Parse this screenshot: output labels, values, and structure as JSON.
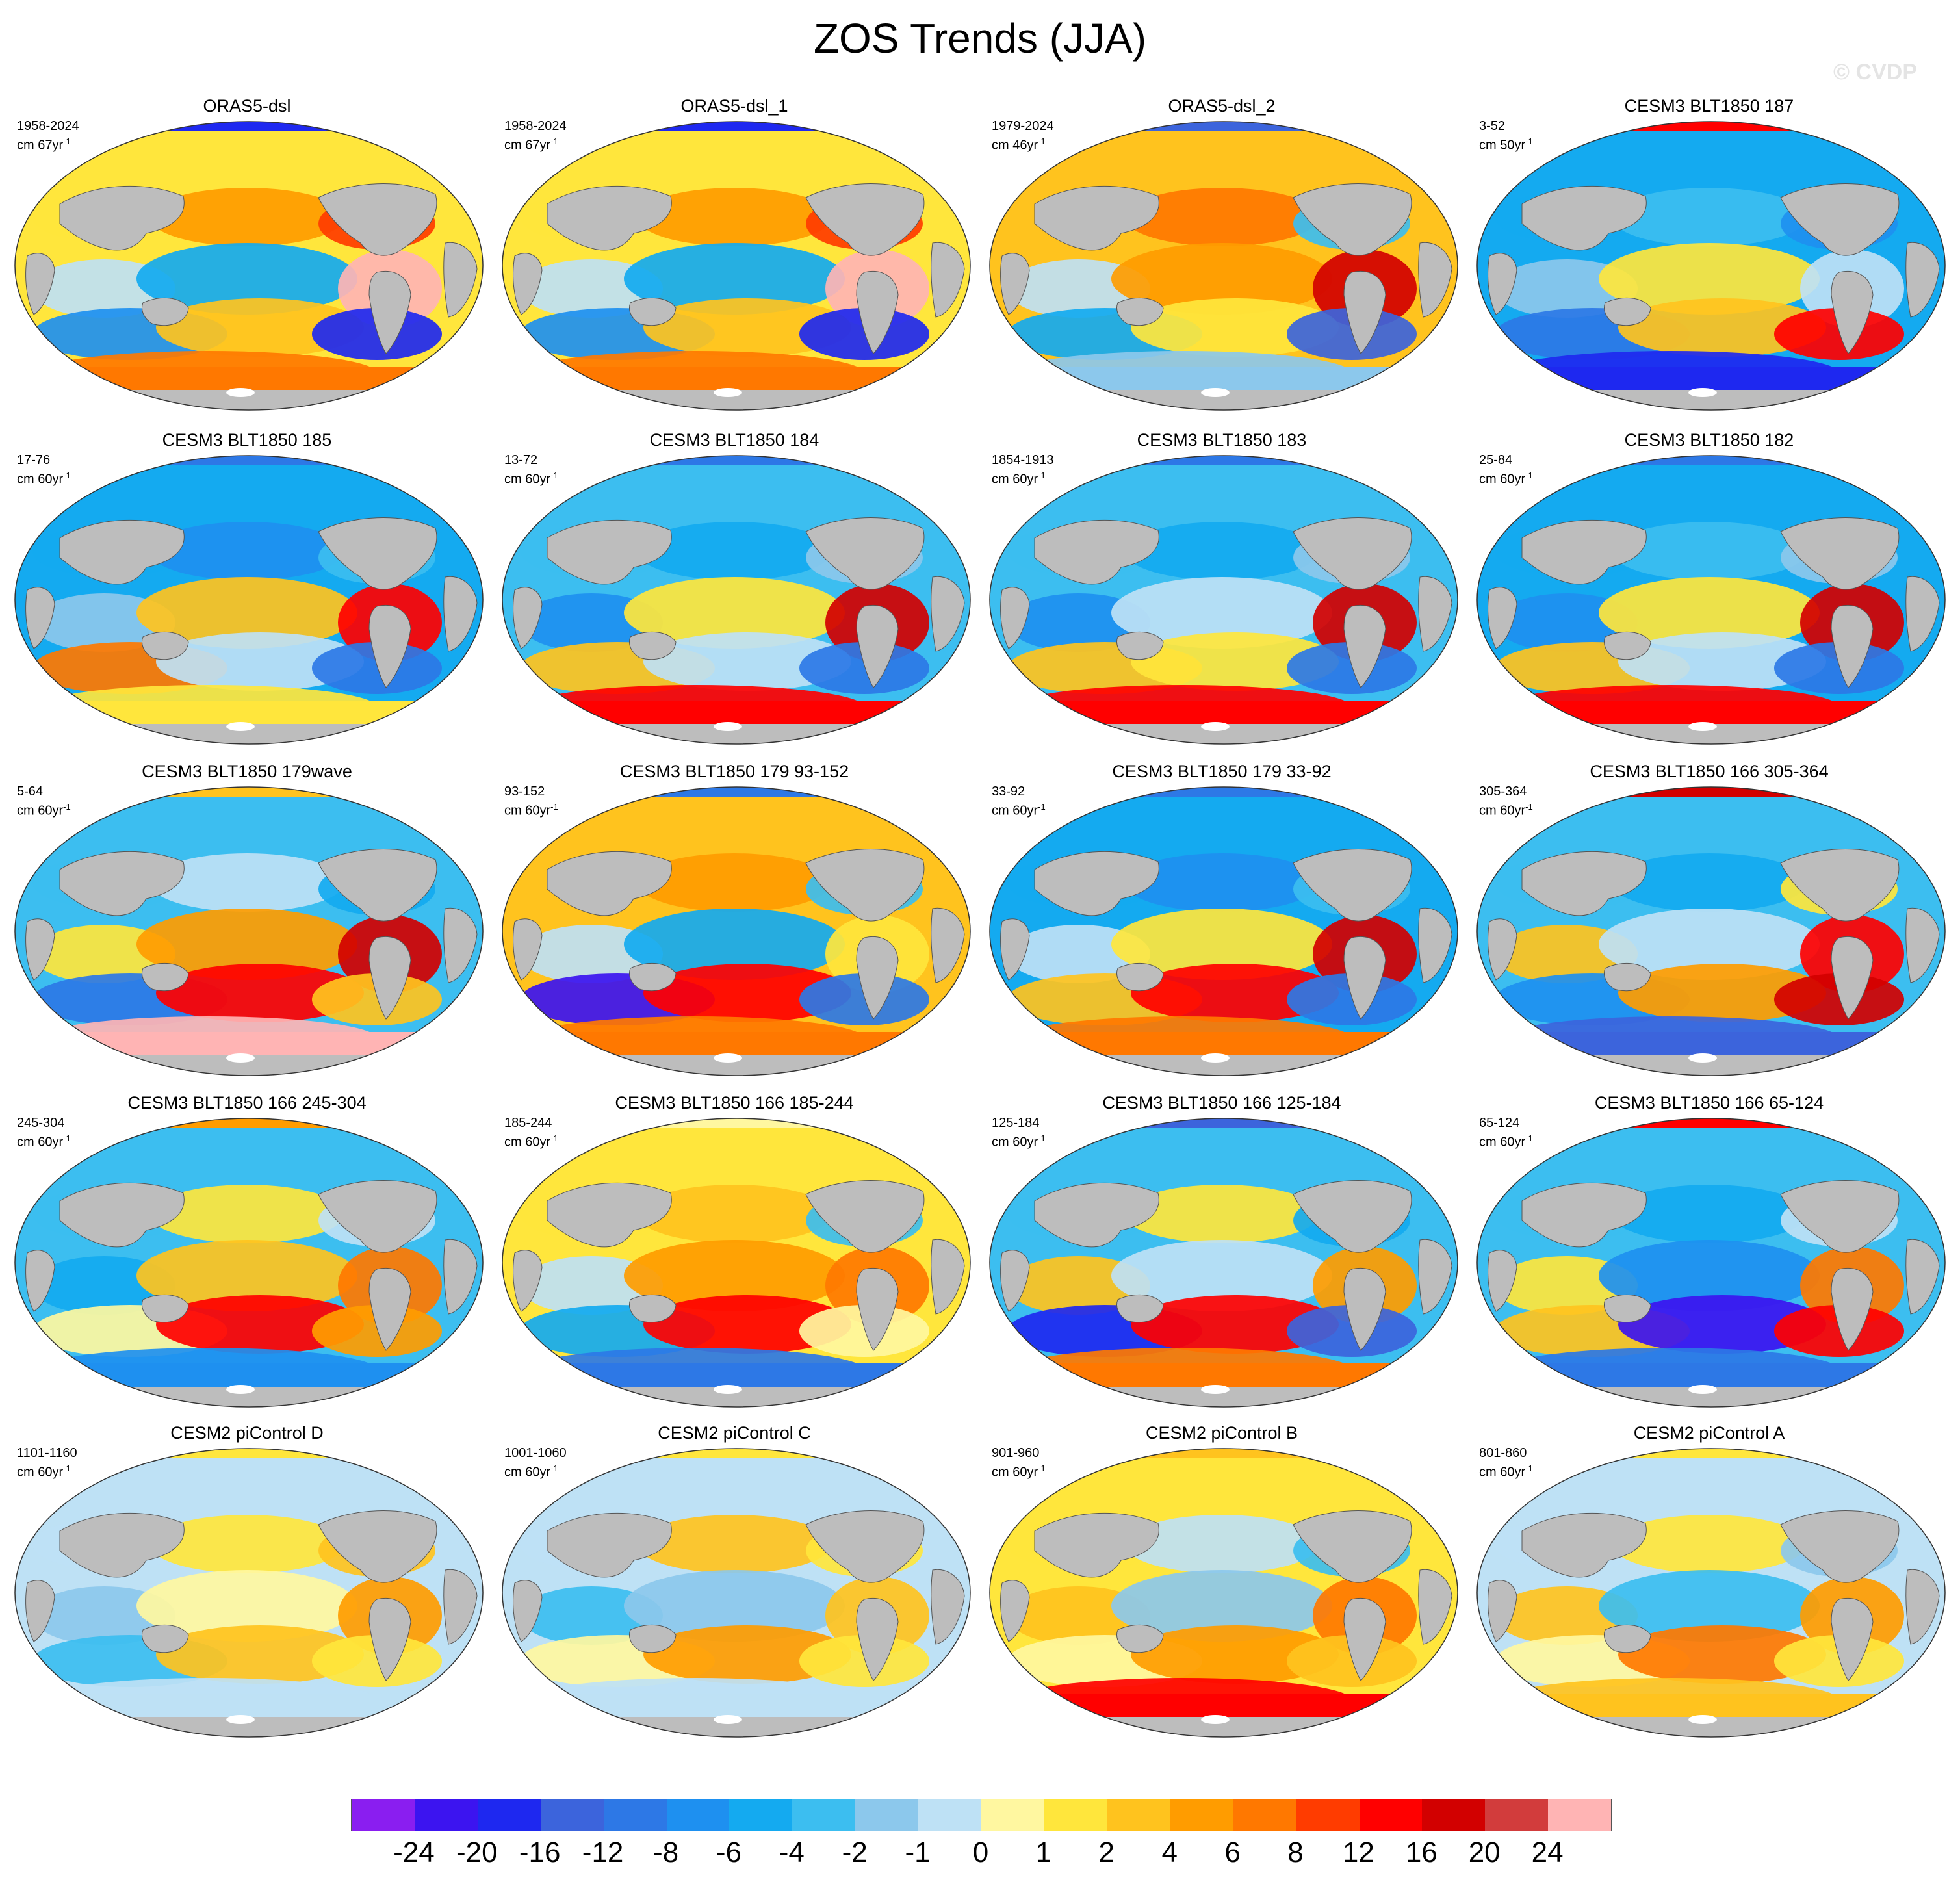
{
  "title": "ZOS Trends (JJA)",
  "watermark": "© CVDP",
  "colorbar": {
    "colors": [
      "#8a1ef0",
      "#3c14f0",
      "#1e28f0",
      "#3c64dc",
      "#2d78e6",
      "#1e90f0",
      "#14aaf0",
      "#3cbef0",
      "#8cc8ec",
      "#bee1f5",
      "#fff7a0",
      "#ffe63c",
      "#ffc31e",
      "#ff9c00",
      "#ff7800",
      "#ff3c00",
      "#ff0000",
      "#d20000",
      "#d23c3c",
      "#ffb4b4"
    ],
    "labels": [
      "-24",
      "-20",
      "-16",
      "-12",
      "-8",
      "-6",
      "-4",
      "-2",
      "-1",
      "0",
      "1",
      "2",
      "4",
      "6",
      "8",
      "12",
      "16",
      "20",
      "24"
    ]
  },
  "panels": [
    {
      "title": "ORAS5-dsl",
      "period": "1958-2024",
      "units": "cm 67yr",
      "unit_sup": "-1",
      "scheme": [
        11,
        13,
        15,
        9,
        6,
        19,
        5,
        12,
        2,
        14
      ]
    },
    {
      "title": "ORAS5-dsl_1",
      "period": "1958-2024",
      "units": "cm 67yr",
      "unit_sup": "-1",
      "scheme": [
        11,
        13,
        15,
        9,
        6,
        19,
        5,
        12,
        2,
        14
      ]
    },
    {
      "title": "ORAS5-dsl_2",
      "period": "1979-2024",
      "units": "cm 46yr",
      "unit_sup": "-1",
      "scheme": [
        12,
        14,
        7,
        9,
        13,
        17,
        6,
        11,
        3,
        8
      ]
    },
    {
      "title": "CESM3 BLT1850 187",
      "period": "3-52",
      "units": "cm 50yr",
      "unit_sup": "-1",
      "scheme": [
        6,
        7,
        5,
        8,
        11,
        9,
        4,
        12,
        16,
        2
      ]
    },
    {
      "title": "CESM3 BLT1850 185",
      "period": "17-76",
      "units": "cm 60yr",
      "unit_sup": "-1",
      "scheme": [
        6,
        5,
        7,
        8,
        12,
        16,
        14,
        9,
        4,
        11
      ]
    },
    {
      "title": "CESM3 BLT1850 184",
      "period": "13-72",
      "units": "cm 60yr",
      "unit_sup": "-1",
      "scheme": [
        7,
        6,
        8,
        5,
        11,
        17,
        12,
        9,
        4,
        16
      ]
    },
    {
      "title": "CESM3 BLT1850 183",
      "period": "1854-1913",
      "units": "cm 60yr",
      "unit_sup": "-1",
      "scheme": [
        7,
        6,
        8,
        5,
        9,
        17,
        12,
        11,
        4,
        16
      ]
    },
    {
      "title": "CESM3 BLT1850 182",
      "period": "25-84",
      "units": "cm 60yr",
      "unit_sup": "-1",
      "scheme": [
        6,
        7,
        8,
        5,
        11,
        17,
        12,
        9,
        4,
        16
      ]
    },
    {
      "title": "CESM3 BLT1850 179wave",
      "period": "5-64",
      "units": "cm 60yr",
      "unit_sup": "-1",
      "scheme": [
        7,
        9,
        6,
        11,
        13,
        17,
        4,
        16,
        12,
        19
      ]
    },
    {
      "title": "CESM3 BLT1850 179 93-152",
      "period": "93-152",
      "units": "cm 60yr",
      "unit_sup": "-1",
      "scheme": [
        12,
        13,
        7,
        9,
        6,
        11,
        1,
        16,
        4,
        14
      ]
    },
    {
      "title": "CESM3 BLT1850 179 33-92",
      "period": "33-92",
      "units": "cm 60yr",
      "unit_sup": "-1",
      "scheme": [
        6,
        5,
        7,
        9,
        11,
        17,
        12,
        16,
        4,
        14
      ]
    },
    {
      "title": "CESM3 BLT1850 166 305-364",
      "period": "305-364",
      "units": "cm 60yr",
      "unit_sup": "-1",
      "scheme": [
        7,
        6,
        11,
        12,
        9,
        16,
        5,
        13,
        17,
        3
      ]
    },
    {
      "title": "CESM3 BLT1850 166 245-304",
      "period": "245-304",
      "units": "cm 60yr",
      "unit_sup": "-1",
      "scheme": [
        7,
        11,
        9,
        6,
        12,
        14,
        10,
        16,
        13,
        5
      ]
    },
    {
      "title": "CESM3 BLT1850 166 185-244",
      "period": "185-244",
      "units": "cm 60yr",
      "unit_sup": "-1",
      "scheme": [
        11,
        12,
        7,
        9,
        13,
        14,
        6,
        16,
        10,
        4
      ]
    },
    {
      "title": "CESM3 BLT1850 166 125-184",
      "period": "125-184",
      "units": "cm 60yr",
      "unit_sup": "-1",
      "scheme": [
        7,
        11,
        6,
        12,
        9,
        13,
        2,
        16,
        3,
        14
      ]
    },
    {
      "title": "CESM3 BLT1850 166 65-124",
      "period": "65-124",
      "units": "cm 60yr",
      "unit_sup": "-1",
      "scheme": [
        7,
        6,
        9,
        11,
        5,
        14,
        12,
        1,
        16,
        4
      ]
    },
    {
      "title": "CESM2 piControl D",
      "period": "1101-1160",
      "units": "cm 60yr",
      "unit_sup": "-1",
      "scheme": [
        9,
        11,
        12,
        8,
        10,
        13,
        7,
        12,
        11,
        9
      ]
    },
    {
      "title": "CESM2 piControl C",
      "period": "1001-1060",
      "units": "cm 60yr",
      "unit_sup": "-1",
      "scheme": [
        9,
        12,
        11,
        7,
        8,
        12,
        10,
        13,
        11,
        9
      ]
    },
    {
      "title": "CESM2 piControl B",
      "period": "901-960",
      "units": "cm 60yr",
      "unit_sup": "-1",
      "scheme": [
        11,
        9,
        7,
        12,
        8,
        14,
        10,
        13,
        12,
        16
      ]
    },
    {
      "title": "CESM2 piControl A",
      "period": "801-860",
      "units": "cm 60yr",
      "unit_sup": "-1",
      "scheme": [
        9,
        11,
        8,
        12,
        7,
        13,
        10,
        14,
        11,
        12
      ]
    }
  ]
}
